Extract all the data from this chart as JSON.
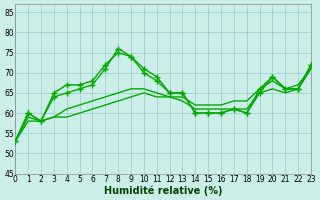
{
  "xlabel": "Humidité relative (%)",
  "xlim": [
    0,
    23
  ],
  "ylim": [
    45,
    87
  ],
  "yticks": [
    45,
    50,
    55,
    60,
    65,
    70,
    75,
    80,
    85
  ],
  "xticks": [
    0,
    1,
    2,
    3,
    4,
    5,
    6,
    7,
    8,
    9,
    10,
    11,
    12,
    13,
    14,
    15,
    16,
    17,
    18,
    19,
    20,
    21,
    22,
    23
  ],
  "background_color": "#cceee8",
  "grid_color": "#99cccc",
  "line_color": "#00aa00",
  "lines": [
    {
      "y": [
        53,
        60,
        58,
        65,
        67,
        67,
        68,
        72,
        75,
        74,
        71,
        69,
        65,
        65,
        60,
        60,
        60,
        61,
        60,
        65,
        69,
        66,
        66,
        72
      ],
      "marker": "+",
      "ms": 5,
      "ls": "-"
    },
    {
      "y": [
        53,
        60,
        58,
        64,
        65,
        66,
        67,
        71,
        76,
        74,
        70,
        68,
        65,
        65,
        60,
        60,
        60,
        61,
        60,
        66,
        69,
        66,
        66,
        72
      ],
      "marker": "+",
      "ms": 5,
      "ls": "-"
    },
    {
      "y": [
        53,
        59,
        58,
        59,
        61,
        62,
        63,
        64,
        65,
        66,
        66,
        65,
        64,
        64,
        62,
        62,
        62,
        63,
        63,
        66,
        68,
        66,
        67,
        71
      ],
      "marker": null,
      "ms": 0,
      "ls": "-"
    },
    {
      "y": [
        53,
        58,
        58,
        59,
        59,
        60,
        61,
        62,
        63,
        64,
        65,
        64,
        64,
        63,
        61,
        61,
        61,
        61,
        61,
        65,
        66,
        65,
        66,
        71
      ],
      "marker": null,
      "ms": 0,
      "ls": "-"
    }
  ],
  "linewidth": 1.0
}
